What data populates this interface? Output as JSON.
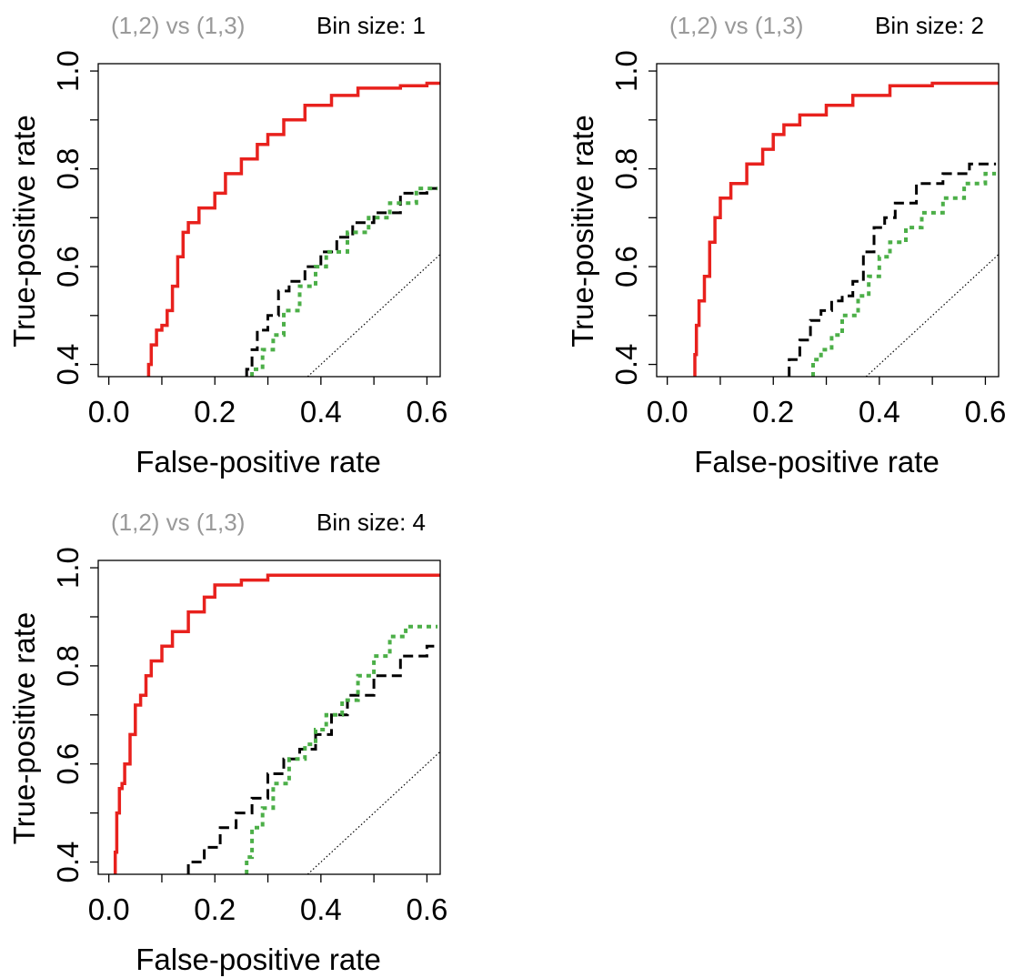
{
  "colors": {
    "red": "#e8211d",
    "black": "#000000",
    "green": "#4caf48",
    "grey_title": "#999999",
    "diagonal": "#000000"
  },
  "chart_data": [
    {
      "type": "line",
      "title_left": "(1,2) vs (1,3)",
      "title_right": "Bin size: 1",
      "xlabel": "False-positive rate",
      "ylabel": "True-positive rate",
      "xlim": [
        -0.02,
        0.625
      ],
      "ylim": [
        0.375,
        1.015
      ],
      "x_ticks": [
        0.0,
        0.1,
        0.2,
        0.3,
        0.4,
        0.5,
        0.6
      ],
      "x_tick_labels": [
        "0.0",
        "",
        "0.2",
        "",
        "0.4",
        "",
        "0.6"
      ],
      "y_ticks": [
        0.4,
        0.5,
        0.6,
        0.7,
        0.8,
        0.9,
        1.0
      ],
      "y_tick_labels": [
        "0.4",
        "",
        "0.6",
        "",
        "0.8",
        "",
        "1.0"
      ],
      "grid": false,
      "series": [
        {
          "style": "solid",
          "color": "red",
          "x": [
            0.075,
            0.08,
            0.09,
            0.1,
            0.11,
            0.12,
            0.13,
            0.14,
            0.15,
            0.17,
            0.2,
            0.22,
            0.25,
            0.28,
            0.3,
            0.33,
            0.37,
            0.42,
            0.47,
            0.55,
            0.6,
            0.625
          ],
          "y": [
            0.375,
            0.4,
            0.44,
            0.47,
            0.48,
            0.51,
            0.56,
            0.62,
            0.67,
            0.69,
            0.72,
            0.75,
            0.79,
            0.82,
            0.85,
            0.87,
            0.9,
            0.93,
            0.95,
            0.965,
            0.97,
            0.975
          ]
        },
        {
          "style": "dashed",
          "color": "black",
          "x": [
            0.26,
            0.27,
            0.28,
            0.3,
            0.32,
            0.34,
            0.37,
            0.4,
            0.43,
            0.46,
            0.5,
            0.55,
            0.6,
            0.62
          ],
          "y": [
            0.375,
            0.39,
            0.43,
            0.47,
            0.5,
            0.55,
            0.57,
            0.6,
            0.63,
            0.66,
            0.69,
            0.71,
            0.75,
            0.76
          ]
        },
        {
          "style": "dotted",
          "color": "green",
          "x": [
            0.27,
            0.29,
            0.31,
            0.33,
            0.36,
            0.39,
            0.41,
            0.45,
            0.49,
            0.53,
            0.58,
            0.62
          ],
          "y": [
            0.375,
            0.39,
            0.43,
            0.46,
            0.51,
            0.56,
            0.6,
            0.63,
            0.67,
            0.7,
            0.73,
            0.76
          ]
        },
        {
          "style": "thin-dotted",
          "color": "diagonal",
          "x": [
            0.375,
            0.625
          ],
          "y": [
            0.375,
            0.625
          ]
        }
      ]
    },
    {
      "type": "line",
      "title_left": "(1,2) vs (1,3)",
      "title_right": "Bin size: 2",
      "xlabel": "False-positive rate",
      "ylabel": "True-positive rate",
      "xlim": [
        -0.02,
        0.625
      ],
      "ylim": [
        0.375,
        1.015
      ],
      "x_ticks": [
        0.0,
        0.1,
        0.2,
        0.3,
        0.4,
        0.5,
        0.6
      ],
      "x_tick_labels": [
        "0.0",
        "",
        "0.2",
        "",
        "0.4",
        "",
        "0.6"
      ],
      "y_ticks": [
        0.4,
        0.5,
        0.6,
        0.7,
        0.8,
        0.9,
        1.0
      ],
      "y_tick_labels": [
        "0.4",
        "",
        "0.6",
        "",
        "0.8",
        "",
        "1.0"
      ],
      "grid": false,
      "series": [
        {
          "style": "solid",
          "color": "red",
          "x": [
            0.052,
            0.055,
            0.06,
            0.07,
            0.08,
            0.09,
            0.1,
            0.12,
            0.15,
            0.18,
            0.2,
            0.22,
            0.25,
            0.3,
            0.35,
            0.42,
            0.5,
            0.6,
            0.625
          ],
          "y": [
            0.375,
            0.42,
            0.48,
            0.53,
            0.58,
            0.65,
            0.7,
            0.74,
            0.77,
            0.81,
            0.84,
            0.87,
            0.89,
            0.91,
            0.93,
            0.95,
            0.97,
            0.975,
            0.975
          ]
        },
        {
          "style": "dashed",
          "color": "black",
          "x": [
            0.23,
            0.25,
            0.27,
            0.29,
            0.31,
            0.33,
            0.35,
            0.37,
            0.39,
            0.41,
            0.43,
            0.47,
            0.52,
            0.57,
            0.62
          ],
          "y": [
            0.375,
            0.41,
            0.45,
            0.49,
            0.51,
            0.53,
            0.54,
            0.57,
            0.63,
            0.68,
            0.7,
            0.73,
            0.77,
            0.79,
            0.81
          ]
        },
        {
          "style": "dotted",
          "color": "green",
          "x": [
            0.275,
            0.29,
            0.31,
            0.33,
            0.36,
            0.38,
            0.4,
            0.42,
            0.45,
            0.48,
            0.52,
            0.56,
            0.6,
            0.62
          ],
          "y": [
            0.375,
            0.41,
            0.43,
            0.46,
            0.5,
            0.54,
            0.58,
            0.62,
            0.65,
            0.68,
            0.71,
            0.74,
            0.77,
            0.79
          ]
        },
        {
          "style": "thin-dotted",
          "color": "diagonal",
          "x": [
            0.375,
            0.625
          ],
          "y": [
            0.375,
            0.625
          ]
        }
      ]
    },
    {
      "type": "line",
      "title_left": "(1,2) vs (1,3)",
      "title_right": "Bin size: 4",
      "xlabel": "False-positive rate",
      "ylabel": "True-positive rate",
      "xlim": [
        -0.02,
        0.625
      ],
      "ylim": [
        0.375,
        1.015
      ],
      "x_ticks": [
        0.0,
        0.1,
        0.2,
        0.3,
        0.4,
        0.5,
        0.6
      ],
      "x_tick_labels": [
        "0.0",
        "",
        "0.2",
        "",
        "0.4",
        "",
        "0.6"
      ],
      "y_ticks": [
        0.4,
        0.5,
        0.6,
        0.7,
        0.8,
        0.9,
        1.0
      ],
      "y_tick_labels": [
        "0.4",
        "",
        "0.6",
        "",
        "0.8",
        "",
        "1.0"
      ],
      "grid": false,
      "series": [
        {
          "style": "solid",
          "color": "red",
          "x": [
            0.012,
            0.015,
            0.02,
            0.025,
            0.03,
            0.04,
            0.05,
            0.06,
            0.07,
            0.08,
            0.1,
            0.12,
            0.15,
            0.18,
            0.2,
            0.25,
            0.3,
            0.45,
            0.625
          ],
          "y": [
            0.375,
            0.42,
            0.5,
            0.55,
            0.56,
            0.6,
            0.66,
            0.72,
            0.74,
            0.78,
            0.81,
            0.84,
            0.87,
            0.91,
            0.94,
            0.965,
            0.975,
            0.985,
            0.985
          ]
        },
        {
          "style": "dashed",
          "color": "black",
          "x": [
            0.15,
            0.18,
            0.21,
            0.24,
            0.27,
            0.3,
            0.33,
            0.36,
            0.39,
            0.42,
            0.45,
            0.5,
            0.55,
            0.6,
            0.62
          ],
          "y": [
            0.375,
            0.4,
            0.43,
            0.47,
            0.5,
            0.53,
            0.58,
            0.61,
            0.63,
            0.66,
            0.7,
            0.74,
            0.78,
            0.82,
            0.84
          ]
        },
        {
          "style": "dotted",
          "color": "green",
          "x": [
            0.26,
            0.27,
            0.29,
            0.31,
            0.34,
            0.37,
            0.39,
            0.41,
            0.44,
            0.47,
            0.5,
            0.53,
            0.56,
            0.6,
            0.62
          ],
          "y": [
            0.375,
            0.41,
            0.47,
            0.51,
            0.56,
            0.61,
            0.64,
            0.67,
            0.7,
            0.73,
            0.78,
            0.82,
            0.86,
            0.88,
            0.88
          ]
        },
        {
          "style": "thin-dotted",
          "color": "diagonal",
          "x": [
            0.375,
            0.625
          ],
          "y": [
            0.375,
            0.625
          ]
        }
      ]
    }
  ]
}
